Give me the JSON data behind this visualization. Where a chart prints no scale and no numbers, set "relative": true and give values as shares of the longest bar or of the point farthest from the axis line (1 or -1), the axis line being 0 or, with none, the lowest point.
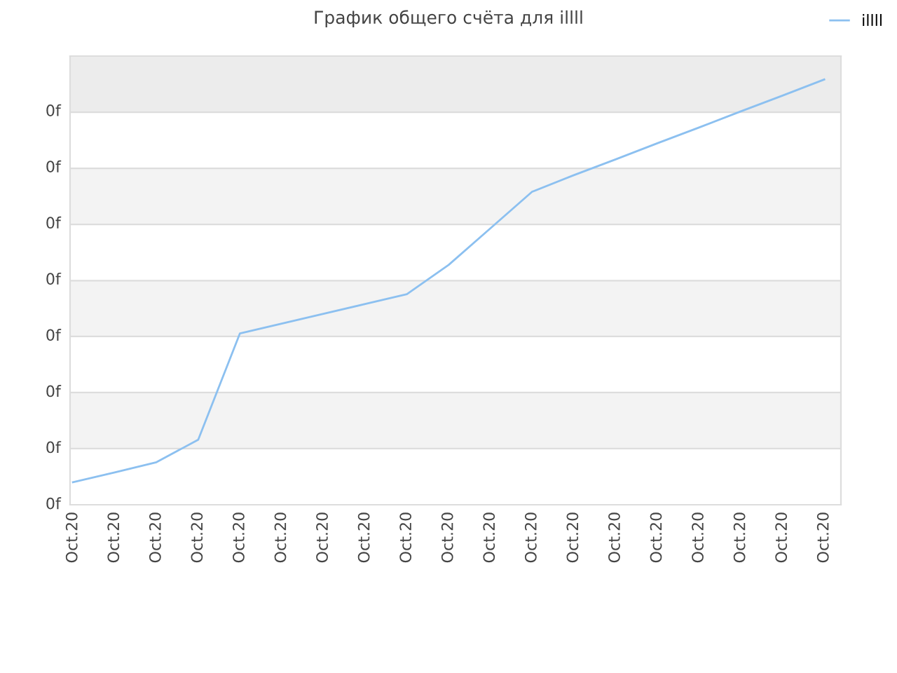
{
  "chart_data": {
    "type": "line",
    "title": "График общего счёта для illll",
    "relative": true,
    "categories": [
      "Oct.20",
      "Oct.20",
      "Oct.20",
      "Oct.20",
      "Oct.20",
      "Oct.20",
      "Oct.20",
      "Oct.20",
      "Oct.20",
      "Oct.20",
      "Oct.20",
      "Oct.20",
      "Oct.20",
      "Oct.20",
      "Oct.20",
      "Oct.20",
      "Oct.20",
      "Oct.20",
      "Oct.20"
    ],
    "series": [
      {
        "name": "illll",
        "color": "#8cc0f0",
        "values": [
          0.053,
          0.076,
          0.1,
          0.153,
          0.403,
          0.426,
          0.449,
          0.472,
          0.495,
          0.564,
          0.65,
          0.736,
          0.775,
          0.812,
          0.85,
          0.887,
          0.925,
          0.962,
          1
        ]
      }
    ],
    "annotations": [
      "0f",
      "0f",
      "0f",
      "0f",
      "0f",
      "0f",
      "0f",
      "0f"
    ],
    "bands": [
      {
        "axis": "y",
        "from": 0.132,
        "to": 0.264,
        "color": "#f3f3f3"
      },
      {
        "axis": "y",
        "from": 0.396,
        "to": 0.527,
        "color": "#f3f3f3"
      },
      {
        "axis": "y",
        "from": 0.659,
        "to": 0.791,
        "color": "#f3f3f3"
      },
      {
        "axis": "y",
        "from": 0.923,
        "to": 1.055,
        "color": "#ececec"
      }
    ],
    "legend": "top right",
    "marker": "none",
    "line_style": "solid"
  }
}
